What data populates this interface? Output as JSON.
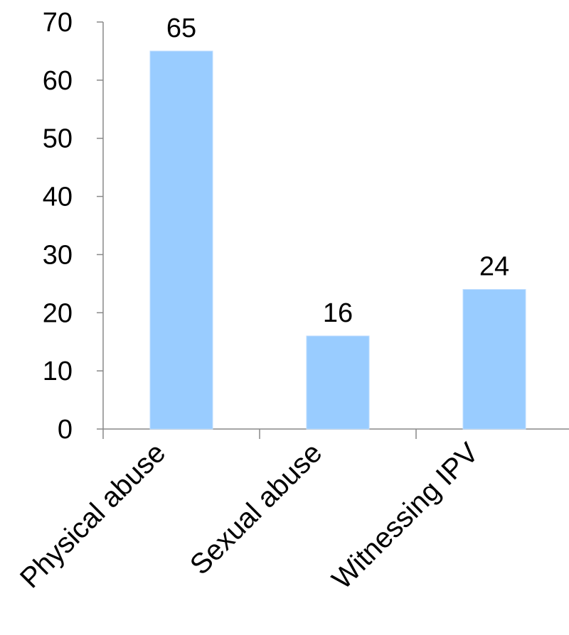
{
  "chart_data": {
    "type": "bar",
    "categories": [
      "Physical abuse",
      "Sexual abuse",
      "Witnessing IPV"
    ],
    "values": [
      65,
      16,
      24
    ],
    "data_labels": [
      "65",
      "16",
      "24"
    ],
    "ylim": [
      0,
      70
    ],
    "yticks": [
      0,
      10,
      20,
      30,
      40,
      50,
      60,
      70
    ],
    "ytick_labels": [
      "0",
      "10",
      "20",
      "30",
      "40",
      "50",
      "60",
      "70"
    ],
    "grid": false,
    "legend": "none",
    "bar_color": "#99ccff",
    "axis_color": "#888888"
  }
}
